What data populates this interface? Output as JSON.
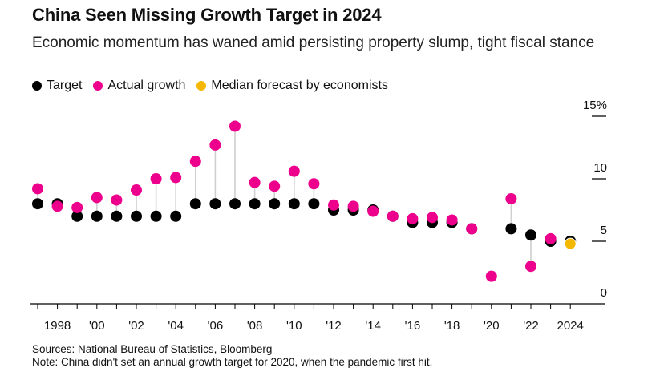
{
  "chart_data": {
    "type": "scatter",
    "title": "China Seen Missing Growth Target in 2024",
    "subtitle": "Economic momentum has waned amid persisting property slump, tight fiscal stance",
    "legend": [
      {
        "name": "Target",
        "color": "#000000"
      },
      {
        "name": "Actual growth",
        "color": "#ec008c"
      },
      {
        "name": "Median forecast by economists",
        "color": "#f5b800"
      }
    ],
    "legend_placement": "top-left",
    "x_range": [
      1997,
      2024
    ],
    "x_tick_labels": [
      {
        "x": 1998,
        "label": "1998"
      },
      {
        "x": 2000,
        "label": "'00"
      },
      {
        "x": 2002,
        "label": "'02"
      },
      {
        "x": 2004,
        "label": "'04"
      },
      {
        "x": 2006,
        "label": "'06"
      },
      {
        "x": 2008,
        "label": "'08"
      },
      {
        "x": 2010,
        "label": "'10"
      },
      {
        "x": 2012,
        "label": "'12"
      },
      {
        "x": 2014,
        "label": "'14"
      },
      {
        "x": 2016,
        "label": "'16"
      },
      {
        "x": 2018,
        "label": "'18"
      },
      {
        "x": 2020,
        "label": "'20"
      },
      {
        "x": 2022,
        "label": "'22"
      },
      {
        "x": 2024,
        "label": "2024"
      }
    ],
    "y_range": [
      0,
      15
    ],
    "y_tick_labels": [
      {
        "y": 0,
        "label": "0"
      },
      {
        "y": 5,
        "label": "5"
      },
      {
        "y": 10,
        "label": "10"
      },
      {
        "y": 15,
        "label": "15%"
      }
    ],
    "grid": false,
    "series": [
      {
        "name": "Target",
        "points": [
          {
            "x": 1997,
            "y": 8
          },
          {
            "x": 1998,
            "y": 8
          },
          {
            "x": 1999,
            "y": 7
          },
          {
            "x": 2000,
            "y": 7
          },
          {
            "x": 2001,
            "y": 7
          },
          {
            "x": 2002,
            "y": 7
          },
          {
            "x": 2003,
            "y": 7
          },
          {
            "x": 2004,
            "y": 7
          },
          {
            "x": 2005,
            "y": 8
          },
          {
            "x": 2006,
            "y": 8
          },
          {
            "x": 2007,
            "y": 8
          },
          {
            "x": 2008,
            "y": 8
          },
          {
            "x": 2009,
            "y": 8
          },
          {
            "x": 2010,
            "y": 8
          },
          {
            "x": 2011,
            "y": 8
          },
          {
            "x": 2012,
            "y": 7.5
          },
          {
            "x": 2013,
            "y": 7.5
          },
          {
            "x": 2014,
            "y": 7.5
          },
          {
            "x": 2015,
            "y": 7
          },
          {
            "x": 2016,
            "y": 6.5
          },
          {
            "x": 2017,
            "y": 6.5
          },
          {
            "x": 2018,
            "y": 6.5
          },
          {
            "x": 2019,
            "y": 6
          },
          {
            "x": 2021,
            "y": 6
          },
          {
            "x": 2022,
            "y": 5.5
          },
          {
            "x": 2023,
            "y": 5
          },
          {
            "x": 2024,
            "y": 5
          }
        ]
      },
      {
        "name": "Actual growth",
        "points": [
          {
            "x": 1997,
            "y": 9.2
          },
          {
            "x": 1998,
            "y": 7.8
          },
          {
            "x": 1999,
            "y": 7.7
          },
          {
            "x": 2000,
            "y": 8.5
          },
          {
            "x": 2001,
            "y": 8.3
          },
          {
            "x": 2002,
            "y": 9.1
          },
          {
            "x": 2003,
            "y": 10.0
          },
          {
            "x": 2004,
            "y": 10.1
          },
          {
            "x": 2005,
            "y": 11.4
          },
          {
            "x": 2006,
            "y": 12.7
          },
          {
            "x": 2007,
            "y": 14.2
          },
          {
            "x": 2008,
            "y": 9.7
          },
          {
            "x": 2009,
            "y": 9.4
          },
          {
            "x": 2010,
            "y": 10.6
          },
          {
            "x": 2011,
            "y": 9.6
          },
          {
            "x": 2012,
            "y": 7.9
          },
          {
            "x": 2013,
            "y": 7.8
          },
          {
            "x": 2014,
            "y": 7.4
          },
          {
            "x": 2015,
            "y": 7.0
          },
          {
            "x": 2016,
            "y": 6.8
          },
          {
            "x": 2017,
            "y": 6.9
          },
          {
            "x": 2018,
            "y": 6.7
          },
          {
            "x": 2019,
            "y": 6.0
          },
          {
            "x": 2020,
            "y": 2.2
          },
          {
            "x": 2021,
            "y": 8.4
          },
          {
            "x": 2022,
            "y": 3.0
          },
          {
            "x": 2023,
            "y": 5.2
          }
        ]
      },
      {
        "name": "Median forecast by economists",
        "points": [
          {
            "x": 2024,
            "y": 4.8
          }
        ]
      }
    ]
  },
  "footer": {
    "sources": "Sources: National Bureau of Statistics, Bloomberg",
    "note": "Note: China didn't set an annual growth target for 2020, when the pandemic first hit."
  }
}
